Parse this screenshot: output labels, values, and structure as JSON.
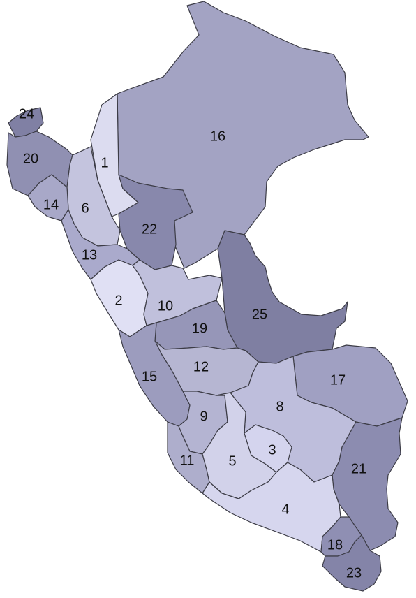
{
  "map": {
    "regions": [
      {
        "label": "1",
        "color": "#dcdcf0"
      },
      {
        "label": "2",
        "color": "#e0e0f4"
      },
      {
        "label": "3",
        "color": "#d4d4ee"
      },
      {
        "label": "4",
        "color": "#d6d6ee"
      },
      {
        "label": "5",
        "color": "#d2d2ea"
      },
      {
        "label": "6",
        "color": "#c4c4de"
      },
      {
        "label": "8",
        "color": "#bebedc"
      },
      {
        "label": "9",
        "color": "#b4b4d2"
      },
      {
        "label": "10",
        "color": "#c0c0dc"
      },
      {
        "label": "11",
        "color": "#aeaecc"
      },
      {
        "label": "12",
        "color": "#b6b6d2"
      },
      {
        "label": "13",
        "color": "#aaaacc"
      },
      {
        "label": "14",
        "color": "#a8a8c8"
      },
      {
        "label": "15",
        "color": "#9c9cbe"
      },
      {
        "label": "16",
        "color": "#a3a3c3"
      },
      {
        "label": "17",
        "color": "#a0a0c2"
      },
      {
        "label": "18",
        "color": "#8f8fb3"
      },
      {
        "label": "19",
        "color": "#9696b8"
      },
      {
        "label": "20",
        "color": "#9090b2"
      },
      {
        "label": "21",
        "color": "#8c8cb0"
      },
      {
        "label": "22",
        "color": "#8888ac"
      },
      {
        "label": "23",
        "color": "#8484a8"
      },
      {
        "label": "24",
        "color": "#8080a4"
      },
      {
        "label": "25",
        "color": "#7f7fa2"
      }
    ]
  }
}
